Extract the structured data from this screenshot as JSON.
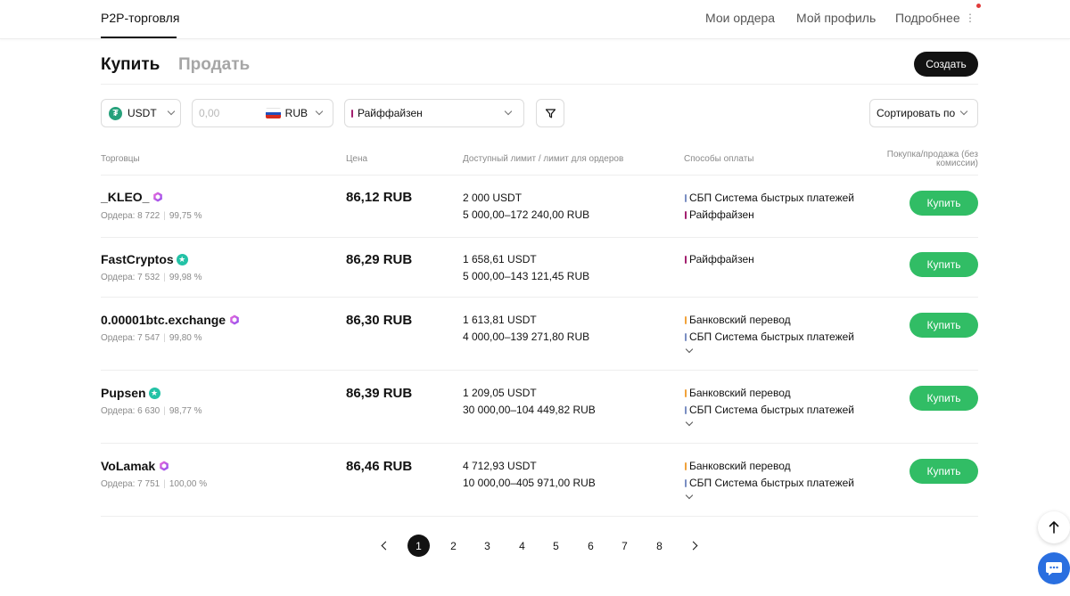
{
  "nav": {
    "brand": "P2P-торговля",
    "links": [
      "Мои ордера",
      "Мой профиль",
      "Подробнее"
    ],
    "more_icon": "vertical-dots-icon",
    "notification_color": "#e03b3b"
  },
  "tabs": {
    "buy": "Купить",
    "sell": "Продать",
    "create": "Создать"
  },
  "filters": {
    "asset": "USDT",
    "asset_icon": "tether-icon",
    "amount_placeholder": "0,00",
    "currency": "RUB",
    "currency_icon": "russia-flag-icon",
    "bank": "Райффайзен",
    "bank_color": "#a3206f",
    "filter_icon": "funnel-icon",
    "sort": "Сортировать по"
  },
  "table": {
    "headers": {
      "traders": "Торговцы",
      "price": "Цена",
      "limit": "Доступный лимит / лимит для ордеров",
      "payment": "Способы оплаты",
      "action_line1": "Покупка/продажа (без",
      "action_line2": "комиссии)"
    },
    "buy_label": "Купить",
    "buy_color": "#31bd65",
    "rows": [
      {
        "name": "_KLEO_",
        "badge": "gem-badge-icon",
        "orders": "Ордера: 8 722",
        "rate": "99,75 %",
        "price": "86,12 RUB",
        "available": "2 000 USDT",
        "limits": "5 000,00–172 240,00 RUB",
        "payments": [
          {
            "label": "СБП Система быстрых платежей",
            "color": "#7a8ec2"
          },
          {
            "label": "Райффайзен",
            "color": "#a3206f"
          }
        ],
        "expand": false
      },
      {
        "name": "FastCryptos",
        "badge": "verified-star-icon",
        "orders": "Ордера: 7 532",
        "rate": "99,98 %",
        "price": "86,29 RUB",
        "available": "1 658,61 USDT",
        "limits": "5 000,00–143 121,45 RUB",
        "payments": [
          {
            "label": "Райффайзен",
            "color": "#a3206f"
          }
        ],
        "expand": false
      },
      {
        "name": "0.00001btc.exchange",
        "badge": "gem-badge-icon",
        "orders": "Ордера: 7 547",
        "rate": "99,80 %",
        "price": "86,30 RUB",
        "available": "1 613,81 USDT",
        "limits": "4 000,00–139 271,80 RUB",
        "payments": [
          {
            "label": "Банковский перевод",
            "color": "#f0a23b"
          },
          {
            "label": "СБП Система быстрых платежей",
            "color": "#7a8ec2"
          }
        ],
        "expand": true
      },
      {
        "name": "Pupsen",
        "badge": "verified-star-icon",
        "orders": "Ордера: 6 630",
        "rate": "98,77 %",
        "price": "86,39 RUB",
        "available": "1 209,05 USDT",
        "limits": "30 000,00–104 449,82 RUB",
        "payments": [
          {
            "label": "Банковский перевод",
            "color": "#f0a23b"
          },
          {
            "label": "СБП Система быстрых платежей",
            "color": "#7a8ec2"
          }
        ],
        "expand": true
      },
      {
        "name": "VoLamak",
        "badge": "gem-badge-icon",
        "orders": "Ордера: 7 751",
        "rate": "100,00 %",
        "price": "86,46 RUB",
        "available": "4 712,93 USDT",
        "limits": "10 000,00–405 971,00 RUB",
        "payments": [
          {
            "label": "Банковский перевод",
            "color": "#f0a23b"
          },
          {
            "label": "СБП Система быстрых платежей",
            "color": "#7a8ec2"
          }
        ],
        "expand": true
      }
    ]
  },
  "pagination": {
    "pages": [
      "1",
      "2",
      "3",
      "4",
      "5",
      "6",
      "7",
      "8"
    ],
    "current": "1"
  },
  "floating": {
    "scroll_top_icon": "arrow-up-icon",
    "chat_icon": "chat-bubble-icon",
    "chat_color": "#2a6fe0"
  }
}
